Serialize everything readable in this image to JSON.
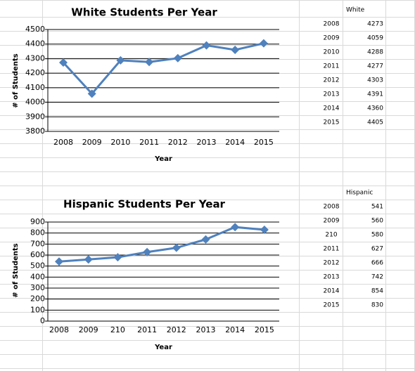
{
  "chart_data": [
    {
      "type": "line",
      "title": "White Students Per Year",
      "x_label": "Year",
      "y_label": "# of Students",
      "categories": [
        "2008",
        "2009",
        "2010",
        "2011",
        "2012",
        "2013",
        "2014",
        "2015"
      ],
      "values": [
        4273,
        4059,
        4288,
        4277,
        4303,
        4391,
        4360,
        4405
      ],
      "color": "#4f81bd",
      "ylim": [
        3800,
        4500
      ],
      "yticks": [
        3800,
        3900,
        4000,
        4100,
        4200,
        4300,
        4400,
        4500
      ],
      "grid": true
    },
    {
      "type": "line",
      "title": "Hispanic Students Per Year",
      "x_label": "Year",
      "y_label": "# of Students",
      "categories": [
        "2008",
        "2009",
        "210",
        "2011",
        "2012",
        "2013",
        "2014",
        "2015"
      ],
      "values": [
        541,
        560,
        580,
        627,
        666,
        742,
        854,
        830
      ],
      "color": "#4f81bd",
      "ylim": [
        0,
        900
      ],
      "yticks": [
        0,
        100,
        200,
        300,
        400,
        500,
        600,
        700,
        800,
        900
      ],
      "grid": true
    }
  ],
  "tables": [
    {
      "header": "White",
      "rows": [
        [
          "2008",
          4273
        ],
        [
          "2009",
          4059
        ],
        [
          "2010",
          4288
        ],
        [
          "2011",
          4277
        ],
        [
          "2012",
          4303
        ],
        [
          "2013",
          4391
        ],
        [
          "2014",
          4360
        ],
        [
          "2015",
          4405
        ]
      ]
    },
    {
      "header": "Hispanic",
      "rows": [
        [
          "2008",
          541
        ],
        [
          "2009",
          560
        ],
        [
          "210",
          580
        ],
        [
          "2011",
          627
        ],
        [
          "2012",
          666
        ],
        [
          "2013",
          742
        ],
        [
          "2014",
          854
        ],
        [
          "2015",
          830
        ]
      ]
    }
  ]
}
